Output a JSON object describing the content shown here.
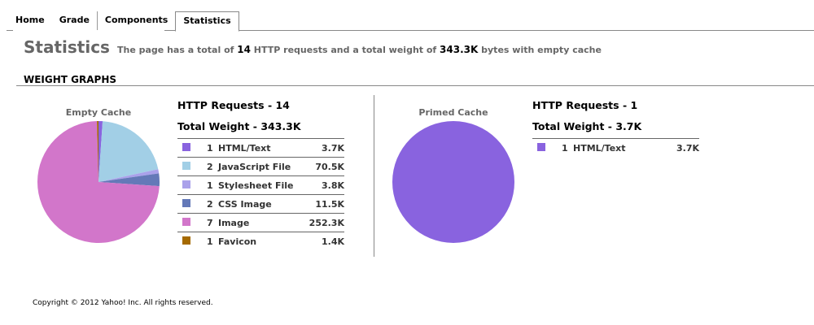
{
  "tabs": [
    {
      "label": "Home"
    },
    {
      "label": "Grade"
    },
    {
      "label": "Components"
    },
    {
      "label": "Statistics"
    }
  ],
  "page_title": "Statistics",
  "summary": {
    "pre": "The page has a total of ",
    "requests": "14",
    "mid": " HTTP requests and a total weight of ",
    "weight": "343.3K",
    "post": " bytes with empty cache"
  },
  "section_title": "WEIGHT GRAPHS",
  "empty": {
    "caption": "Empty Cache",
    "requests": "HTTP Requests - 14",
    "weight": "Total Weight - 343.3K",
    "rows": [
      {
        "count": "1",
        "type": "HTML/Text",
        "size": "3.7K",
        "kb": 3.7,
        "color": "#8963df"
      },
      {
        "count": "2",
        "type": "JavaScript File",
        "size": "70.5K",
        "kb": 70.5,
        "color": "#a2cfe6"
      },
      {
        "count": "1",
        "type": "Stylesheet File",
        "size": "3.8K",
        "kb": 3.8,
        "color": "#aaa1ea"
      },
      {
        "count": "2",
        "type": "CSS Image",
        "size": "11.5K",
        "kb": 11.5,
        "color": "#6479b8"
      },
      {
        "count": "7",
        "type": "Image",
        "size": "252.3K",
        "kb": 252.3,
        "color": "#d276ca"
      },
      {
        "count": "1",
        "type": "Favicon",
        "size": "1.4K",
        "kb": 1.4,
        "color": "#a56a00"
      }
    ]
  },
  "primed": {
    "caption": "Primed Cache",
    "requests": "HTTP Requests - 1",
    "weight": "Total Weight - 3.7K",
    "rows": [
      {
        "count": "1",
        "type": "HTML/Text",
        "size": "3.7K",
        "kb": 3.7,
        "color": "#8963df"
      }
    ]
  },
  "copyright": "Copyright © 2012 Yahoo! Inc. All rights reserved."
}
